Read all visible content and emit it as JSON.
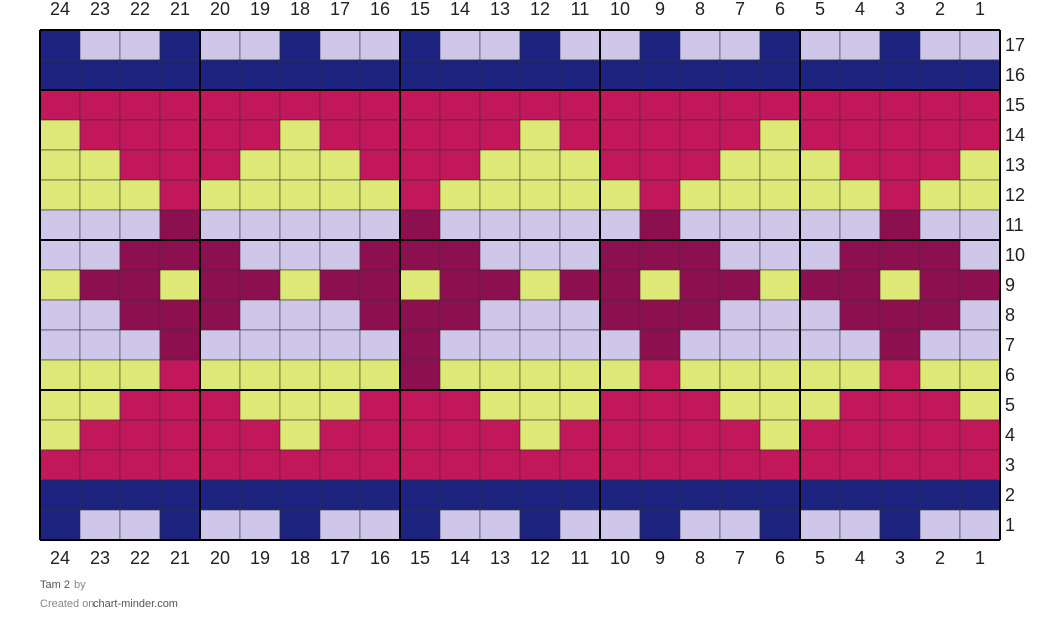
{
  "columns": [
    "24",
    "23",
    "22",
    "21",
    "20",
    "19",
    "18",
    "17",
    "16",
    "15",
    "14",
    "13",
    "12",
    "11",
    "10",
    "9",
    "8",
    "7",
    "6",
    "5",
    "4",
    "3",
    "2",
    "1"
  ],
  "palette": {
    "N": "#1b237f",
    "L": "#cfc7ea",
    "M": "#c2185b",
    "Y": "#dde876",
    "P": "#8c0f4f"
  },
  "rows": [
    {
      "label": "17",
      "cells": "NLLNLLNLLNLLNLLNLLNLLNLL"
    },
    {
      "label": "16",
      "cells": "NNNNNNNNNNNNNNNNNNNNNNNN"
    },
    {
      "label": "15",
      "cells": "MMMMMMMMMMMMMMMMMMMMMMMM"
    },
    {
      "label": "14",
      "cells": "YMMMMMYMMMMMYMMMMMYMMMMM"
    },
    {
      "label": "13",
      "cells": "YYMMMYYYMMMYYYMMMYYYMMMY"
    },
    {
      "label": "12",
      "cells": "YYYMYYYYYMYYYYYMYYYYYMYY"
    },
    {
      "label": "11",
      "cells": "LLLPLLLLLPLLLLLPLLLLLPLL"
    },
    {
      "label": "10",
      "cells": "LLPPPLLLPPPLLLPPPLLLPPPL"
    },
    {
      "label": "9",
      "cells": "YPPYPPYPPYPPYPPYPPYPPYPP"
    },
    {
      "label": "8",
      "cells": "LLPPPLLLPPPLLLPPPLLLPPPL"
    },
    {
      "label": "7",
      "cells": "LLLPLLLLLPLLLLLPLLLLLPLL"
    },
    {
      "label": "6",
      "cells": "YYYMYYYYYPYYYYYMYYYYYMYY"
    },
    {
      "label": "5",
      "cells": "YYMMMYYYMMMYYYMMMYYYMMMY"
    },
    {
      "label": "4",
      "cells": "YMMMMMYMMMMMYMMMMMYMMMMM"
    },
    {
      "label": "3",
      "cells": "MMMMMMMMMMMMMMMMMMMMMMMM"
    },
    {
      "label": "2",
      "cells": "NNNNNNNNNNNNNNNNNNNNNNNN"
    },
    {
      "label": "1",
      "cells": "NLLNLLNLLNLLNLLNLLNLLNLL"
    }
  ],
  "footer": {
    "title": "Tam 2",
    "by": "by",
    "created": "Created on",
    "site": "chart-minder.com"
  }
}
